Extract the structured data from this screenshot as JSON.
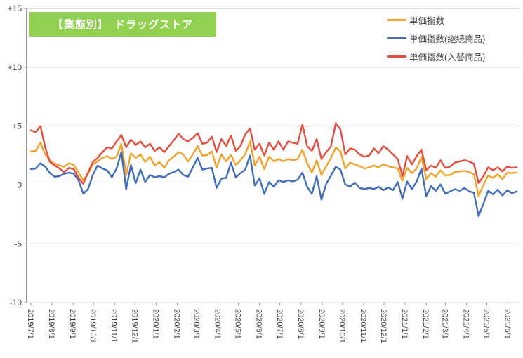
{
  "title": {
    "text": "【業態別】　ドラッグストア",
    "bg_color": "#92D050",
    "text_color": "#FFFFFF"
  },
  "legend": {
    "position": "top-right",
    "items": [
      {
        "label": "単価指数",
        "color": "#F5A127"
      },
      {
        "label": "単価指数(継続商品)",
        "color": "#3E6DC0"
      },
      {
        "label": "単価指数(入替商品)",
        "color": "#E84C3C"
      }
    ]
  },
  "y_axis": {
    "tick_labels": [
      "+15",
      "+10",
      "+5",
      "0",
      "-5",
      "-10"
    ],
    "tick_values": [
      15,
      10,
      5,
      0,
      -5,
      -10
    ],
    "min": -10,
    "max": 15
  },
  "x_axis": {
    "tick_labels": [
      "2019/7/1",
      "2019/8/1",
      "2019/9/1",
      "2019/10/1",
      "2019/11/1",
      "2019/12/1",
      "2020/1/1",
      "2020/2/1",
      "2020/3/1",
      "2020/4/1",
      "2020/5/1",
      "2020/6/1",
      "2020/7/1",
      "2020/8/1",
      "2020/9/1",
      "2020/10/1",
      "2020/11/1",
      "2020/12/1",
      "2021/1/1",
      "2021/2/1",
      "2021/3/1",
      "2021/4/1",
      "2021/5/1",
      "2021/6/1"
    ]
  },
  "chart_data": {
    "type": "line",
    "x_unit": "week",
    "x_start": "2019/7/1",
    "x_interval_days": 7,
    "n_points": 103,
    "ylim": [
      -10,
      15
    ],
    "grid": true,
    "legend_position": "top-right",
    "series": [
      {
        "name": "単価指数",
        "color": "#F5A127",
        "values": [
          2.85,
          2.9,
          3.6,
          2.6,
          2.05,
          1.8,
          1.65,
          1.55,
          1.85,
          1.7,
          1.05,
          0.4,
          0.95,
          1.75,
          2.0,
          2.3,
          2.45,
          2.2,
          2.4,
          3.5,
          0.85,
          2.7,
          2.3,
          2.6,
          1.95,
          2.4,
          1.65,
          1.95,
          1.45,
          2.1,
          2.4,
          2.8,
          2.6,
          2.0,
          2.6,
          3.3,
          2.5,
          2.55,
          2.85,
          1.45,
          2.6,
          2.0,
          2.55,
          1.7,
          2.1,
          2.6,
          3.7,
          1.65,
          2.4,
          1.35,
          2.4,
          2.0,
          2.2,
          2.0,
          2.2,
          2.1,
          2.2,
          3.0,
          1.85,
          1.05,
          2.1,
          0.85,
          1.6,
          2.3,
          3.2,
          2.85,
          1.4,
          1.9,
          1.75,
          1.6,
          1.4,
          1.5,
          1.65,
          1.5,
          1.75,
          1.6,
          1.5,
          1.4,
          0.35,
          1.45,
          1.0,
          1.4,
          2.4,
          0.5,
          1.0,
          0.7,
          1.25,
          0.8,
          0.85,
          1.1,
          1.15,
          1.2,
          1.1,
          0.9,
          -0.95,
          0.0,
          0.8,
          0.6,
          0.9,
          0.5,
          1.05,
          1.0,
          1.05
        ]
      },
      {
        "name": "単価指数(継続商品)",
        "color": "#3E6DC0",
        "values": [
          1.35,
          1.4,
          1.85,
          1.55,
          1.0,
          0.7,
          0.75,
          0.95,
          1.05,
          0.95,
          0.4,
          -0.75,
          -0.35,
          0.85,
          1.65,
          1.4,
          1.25,
          0.65,
          1.4,
          2.8,
          -0.35,
          1.7,
          0.15,
          1.3,
          0.25,
          0.85,
          0.65,
          0.75,
          0.65,
          0.95,
          1.1,
          1.3,
          0.85,
          0.7,
          1.5,
          2.3,
          1.3,
          1.4,
          1.45,
          -0.25,
          0.55,
          0.6,
          1.9,
          0.65,
          1.0,
          1.3,
          2.5,
          -0.05,
          0.55,
          -0.75,
          0.25,
          -0.15,
          0.4,
          0.25,
          0.4,
          0.3,
          0.45,
          1.05,
          -0.15,
          -0.75,
          0.75,
          -1.25,
          0.1,
          0.8,
          1.55,
          1.3,
          0.05,
          -0.15,
          0.2,
          -0.25,
          -0.35,
          -0.25,
          -0.35,
          -0.15,
          -0.45,
          -0.2,
          -0.45,
          0.25,
          -1.15,
          0.3,
          -0.35,
          0.3,
          1.4,
          -0.95,
          -0.1,
          -0.5,
          0.05,
          -0.75,
          -0.55,
          -0.35,
          -0.5,
          -0.25,
          -0.55,
          -0.65,
          -2.65,
          -1.6,
          -0.5,
          -0.8,
          -0.4,
          -0.9,
          -0.45,
          -0.7,
          -0.55
        ]
      },
      {
        "name": "単価指数(入替商品)",
        "color": "#E84C3C",
        "values": [
          4.65,
          4.5,
          5.0,
          3.2,
          1.95,
          1.65,
          1.4,
          1.1,
          1.45,
          1.35,
          0.6,
          0.1,
          1.05,
          1.95,
          2.3,
          2.8,
          3.2,
          3.1,
          3.7,
          4.25,
          3.2,
          3.85,
          3.4,
          3.7,
          3.2,
          3.5,
          2.9,
          3.2,
          2.8,
          3.3,
          3.8,
          4.35,
          3.9,
          3.7,
          4.0,
          4.4,
          3.5,
          3.6,
          4.1,
          2.8,
          3.9,
          3.3,
          4.2,
          2.9,
          3.3,
          4.3,
          4.8,
          3.0,
          3.5,
          2.5,
          3.6,
          3.0,
          3.7,
          3.0,
          3.7,
          3.6,
          3.5,
          5.15,
          3.3,
          2.9,
          3.9,
          2.2,
          2.8,
          3.3,
          5.25,
          4.7,
          2.6,
          3.1,
          3.0,
          2.6,
          2.4,
          2.5,
          3.1,
          2.7,
          3.3,
          3.0,
          2.6,
          2.2,
          0.75,
          2.45,
          1.75,
          2.45,
          3.0,
          1.25,
          1.65,
          1.45,
          2.1,
          1.45,
          1.55,
          1.9,
          2.0,
          2.1,
          2.0,
          1.8,
          0.15,
          0.75,
          1.5,
          1.25,
          1.5,
          1.15,
          1.55,
          1.45,
          1.5
        ]
      }
    ]
  },
  "style_colors": {
    "grid": "#C8C8C8",
    "axis": "#9B9B9B",
    "tick_text": "#3F3F3F",
    "background": "#FFFFFF"
  }
}
